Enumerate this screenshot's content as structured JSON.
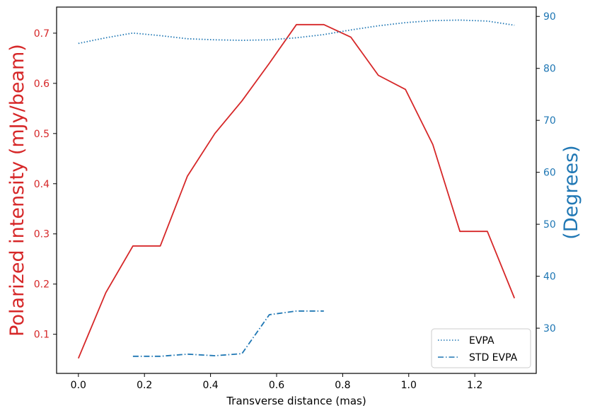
{
  "chart_data": {
    "type": "line",
    "xlabel": "Transverse distance (mas)",
    "ylabel_left": "Polarized intensity (mJy/beam)",
    "ylabel_right": "(Degrees)",
    "xlim": [
      -0.066,
      1.386
    ],
    "ylim_left": [
      0.022,
      0.752
    ],
    "ylim_right": [
      21.3,
      91.8
    ],
    "x_ticks": [
      0.0,
      0.2,
      0.4,
      0.6,
      0.8,
      1.0,
      1.2
    ],
    "x_tick_labels": [
      "0.0",
      "0.2",
      "0.4",
      "0.6",
      "0.8",
      "1.0",
      "1.2"
    ],
    "y_left_ticks": [
      0.1,
      0.2,
      0.3,
      0.4,
      0.5,
      0.6,
      0.7
    ],
    "y_left_tick_labels": [
      "0.1",
      "0.2",
      "0.3",
      "0.4",
      "0.5",
      "0.6",
      "0.7"
    ],
    "y_right_ticks": [
      30,
      40,
      50,
      60,
      70,
      80,
      90
    ],
    "y_right_tick_labels": [
      "30",
      "40",
      "50",
      "60",
      "70",
      "80",
      "90"
    ],
    "colors": {
      "left_axis": "#d62728",
      "right_axis": "#1f77b4",
      "spine": "#000000"
    },
    "legend": {
      "placement": "lower-right",
      "entries": [
        "EVPA",
        "STD EVPA"
      ]
    },
    "grid": false,
    "series": [
      {
        "axis": "left",
        "color": "#d62728",
        "style": "solid",
        "x": [
          0.0,
          0.083,
          0.165,
          0.248,
          0.33,
          0.413,
          0.495,
          0.578,
          0.66,
          0.743,
          0.825,
          0.908,
          0.99,
          1.073,
          1.155,
          1.238,
          1.32
        ],
        "values": [
          0.052,
          0.183,
          0.276,
          0.276,
          0.415,
          0.5,
          0.565,
          0.64,
          0.717,
          0.717,
          0.692,
          0.616,
          0.588,
          0.478,
          0.305,
          0.305,
          0.172
        ]
      },
      {
        "name": "EVPA",
        "axis": "right",
        "color": "#1f77b4",
        "style": "dotted",
        "x": [
          0.0,
          0.083,
          0.165,
          0.248,
          0.33,
          0.413,
          0.495,
          0.578,
          0.66,
          0.743,
          0.825,
          0.908,
          0.99,
          1.073,
          1.155,
          1.238,
          1.32
        ],
        "values": [
          84.8,
          85.9,
          86.8,
          86.3,
          85.7,
          85.5,
          85.4,
          85.5,
          85.9,
          86.5,
          87.4,
          88.2,
          88.8,
          89.2,
          89.3,
          89.1,
          88.3
        ]
      },
      {
        "name": "STD EVPA",
        "axis": "right",
        "color": "#1f77b4",
        "style": "dashdot",
        "x": [
          0.165,
          0.248,
          0.33,
          0.413,
          0.495,
          0.578,
          0.66,
          0.743
        ],
        "values": [
          24.6,
          24.6,
          25.0,
          24.7,
          25.1,
          32.6,
          33.3,
          33.3
        ]
      }
    ]
  }
}
